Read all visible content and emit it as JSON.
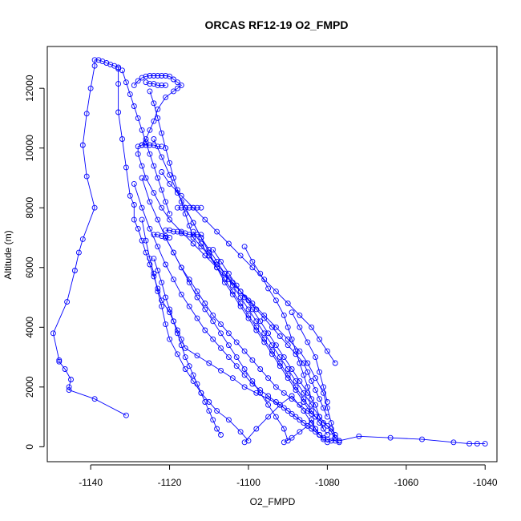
{
  "chart_data": {
    "type": "scatter",
    "title": "ORCAS RF12-19 O2_FMPD",
    "xlabel": "O2_FMPD",
    "ylabel": "Altitude (m)",
    "xlim": [
      -1151,
      -1037
    ],
    "ylim": [
      -500,
      13400
    ],
    "xticks": [
      -1140,
      -1120,
      -1100,
      -1080,
      -1060,
      -1040
    ],
    "yticks": [
      0,
      2000,
      4000,
      6000,
      8000,
      10000,
      12000
    ],
    "series_color": "#0000ff",
    "series": [
      {
        "x": [
          -1131,
          -1139,
          -1145.5,
          -1145.5,
          -1145,
          -1146.5,
          -1148,
          -1148,
          -1149.5,
          -1146,
          -1144,
          -1143,
          -1142,
          -1139,
          -1141,
          -1142,
          -1141,
          -1140,
          -1139,
          -1139,
          -1138,
          -1137,
          -1136,
          -1135,
          -1134,
          -1133,
          -1133
        ],
        "y": [
          1050,
          1600,
          1900,
          2000,
          2250,
          2600,
          2850,
          2900,
          3800,
          4850,
          5900,
          6500,
          6950,
          8000,
          9050,
          10100,
          11150,
          12000,
          12750,
          12950,
          12950,
          12900,
          12850,
          12800,
          12750,
          12700,
          12650
        ]
      },
      {
        "x": [
          -1133,
          -1133,
          -1133,
          -1132,
          -1131,
          -1130,
          -1129,
          -1129,
          -1128,
          -1127,
          -1126,
          -1125,
          -1124,
          -1123,
          -1122,
          -1120,
          -1119,
          -1118,
          -1117,
          -1116,
          -1113,
          -1110,
          -1107,
          -1104,
          -1101,
          -1098,
          -1095,
          -1092,
          -1090,
          -1088,
          -1086,
          -1084,
          -1082,
          -1080,
          -1078,
          -1077
        ],
        "y": [
          12700,
          12150,
          11200,
          10300,
          9350,
          8400,
          8100,
          7600,
          7300,
          6900,
          6500,
          6100,
          5700,
          5300,
          4900,
          4500,
          4200,
          3900,
          3600,
          3300,
          3050,
          2800,
          2550,
          2300,
          2000,
          1800,
          1600,
          1400,
          1200,
          1000,
          800,
          600,
          400,
          250,
          200,
          150
        ]
      },
      {
        "x": [
          -1129,
          -1128,
          -1127,
          -1126,
          -1125,
          -1124,
          -1123,
          -1122,
          -1121,
          -1120,
          -1119,
          -1118,
          -1117,
          -1118,
          -1119,
          -1121,
          -1123,
          -1124,
          -1125,
          -1126,
          -1127,
          -1128,
          -1128,
          -1127,
          -1126,
          -1124,
          -1122,
          -1120,
          -1117,
          -1114,
          -1111,
          -1108,
          -1105,
          -1102,
          -1099,
          -1096,
          -1093,
          -1090,
          -1087,
          -1085,
          -1083,
          -1081,
          -1080,
          -1079,
          -1078
        ],
        "y": [
          12100,
          12250,
          12350,
          12400,
          12420,
          12420,
          12420,
          12420,
          12420,
          12400,
          12300,
          12200,
          12100,
          12000,
          11900,
          11700,
          11300,
          10900,
          10600,
          10300,
          10100,
          10050,
          9800,
          9400,
          9000,
          8500,
          8000,
          7600,
          7200,
          6800,
          6400,
          6000,
          5600,
          5200,
          4800,
          4400,
          4000,
          3600,
          3200,
          2800,
          2300,
          1800,
          1300,
          800,
          300
        ]
      },
      {
        "x": [
          -1125,
          -1124,
          -1123,
          -1122,
          -1121,
          -1120,
          -1119,
          -1118,
          -1117,
          -1116,
          -1115,
          -1114,
          -1112,
          -1110,
          -1108,
          -1106,
          -1104,
          -1102,
          -1100,
          -1098,
          -1096,
          -1094,
          -1092,
          -1090,
          -1088,
          -1086,
          -1085,
          -1084,
          -1083,
          -1082,
          -1081,
          -1080
        ],
        "y": [
          11900,
          11500,
          11000,
          10500,
          10000,
          9500,
          9000,
          8600,
          8200,
          7800,
          7400,
          7000,
          6700,
          6400,
          6100,
          5800,
          5500,
          5200,
          4900,
          4600,
          4300,
          4000,
          3700,
          3400,
          3100,
          2800,
          2500,
          2200,
          1900,
          1600,
          1300,
          1000
        ]
      },
      {
        "x": [
          -1124,
          -1122,
          -1120,
          -1118,
          -1116,
          -1114,
          -1112,
          -1110,
          -1108,
          -1106,
          -1104,
          -1102,
          -1100,
          -1098,
          -1096,
          -1094,
          -1092,
          -1090,
          -1088,
          -1086,
          -1084,
          -1082,
          -1080,
          -1079,
          -1078,
          -1077
        ],
        "y": [
          10300,
          9700,
          9100,
          8500,
          8000,
          7500,
          7000,
          6600,
          6200,
          5800,
          5400,
          5000,
          4600,
          4200,
          3800,
          3400,
          3000,
          2600,
          2200,
          1800,
          1400,
          1000,
          700,
          500,
          300,
          200
        ]
      },
      {
        "x": [
          -1122,
          -1120,
          -1117,
          -1114,
          -1111,
          -1108,
          -1105,
          -1102,
          -1099,
          -1096,
          -1093,
          -1090,
          -1087,
          -1084,
          -1082,
          -1080,
          -1078
        ],
        "y": [
          9200,
          8800,
          8400,
          8000,
          7600,
          7200,
          6800,
          6400,
          6000,
          5600,
          5200,
          4800,
          4400,
          4000,
          3600,
          3200,
          2800
        ]
      },
      {
        "x": [
          -1127,
          -1125,
          -1123,
          -1121,
          -1119,
          -1117,
          -1115,
          -1113,
          -1111,
          -1109,
          -1107,
          -1105,
          -1103,
          -1101,
          -1099,
          -1097,
          -1095,
          -1093,
          -1091,
          -1089,
          -1087,
          -1085,
          -1083,
          -1081,
          -1079,
          -1078
        ],
        "y": [
          9000,
          8200,
          7600,
          7000,
          6500,
          6000,
          5600,
          5200,
          4800,
          4400,
          4100,
          3800,
          3500,
          3200,
          2900,
          2600,
          2300,
          2000,
          1800,
          1600,
          1400,
          1200,
          1000,
          800,
          600,
          400
        ]
      },
      {
        "x": [
          -1129,
          -1127,
          -1125,
          -1123,
          -1121,
          -1119,
          -1117,
          -1115,
          -1113,
          -1111,
          -1109,
          -1107,
          -1105,
          -1103,
          -1101,
          -1099,
          -1097,
          -1095,
          -1093,
          -1091,
          -1089,
          -1087,
          -1085,
          -1083,
          -1081
        ],
        "y": [
          8800,
          8000,
          7300,
          6700,
          6100,
          5600,
          5100,
          4700,
          4300,
          3900,
          3600,
          3300,
          3000,
          2700,
          2400,
          2100,
          1900,
          1700,
          1500,
          1300,
          1100,
          900,
          700,
          500,
          300
        ]
      },
      {
        "x": [
          -1127,
          -1126,
          -1125,
          -1124,
          -1123,
          -1122,
          -1121,
          -1120,
          -1118,
          -1116,
          -1114,
          -1112,
          -1110,
          -1108,
          -1105,
          -1102,
          -1100
        ],
        "y": [
          7600,
          6900,
          6300,
          5800,
          5200,
          4700,
          4100,
          3600,
          3100,
          2600,
          2200,
          1800,
          1500,
          1200,
          900,
          500,
          200
        ]
      },
      {
        "x": [
          -1124,
          -1123,
          -1122,
          -1121,
          -1120,
          -1119,
          -1118,
          -1117,
          -1116,
          -1115,
          -1114,
          -1113,
          -1112,
          -1111,
          -1110,
          -1109,
          -1108,
          -1107
        ],
        "y": [
          6300,
          5900,
          5500,
          5000,
          4600,
          4200,
          3800,
          3400,
          3000,
          2700,
          2400,
          2100,
          1800,
          1500,
          1200,
          900,
          600,
          400
        ]
      },
      {
        "x": [
          -1121,
          -1119,
          -1117,
          -1115,
          -1113,
          -1111,
          -1109,
          -1107,
          -1105,
          -1103,
          -1101,
          -1099,
          -1097,
          -1095,
          -1093,
          -1091,
          -1090
        ],
        "y": [
          7000,
          6500,
          6000,
          5500,
          5000,
          4600,
          4200,
          3800,
          3400,
          3000,
          2600,
          2200,
          1800,
          1400,
          1000,
          600,
          200
        ]
      },
      {
        "x": [
          -1114,
          -1112,
          -1110,
          -1108,
          -1106,
          -1104,
          -1102,
          -1100,
          -1098,
          -1096,
          -1094,
          -1092,
          -1090,
          -1088,
          -1086,
          -1084,
          -1082,
          -1080
        ],
        "y": [
          7200,
          6800,
          6400,
          6000,
          5600,
          5200,
          4800,
          4400,
          4000,
          3600,
          3200,
          2800,
          2400,
          2000,
          1600,
          1200,
          800,
          400
        ]
      },
      {
        "x": [
          -1116,
          -1114,
          -1112,
          -1110,
          -1108,
          -1106,
          -1104,
          -1102,
          -1100,
          -1098,
          -1096,
          -1094,
          -1092,
          -1090,
          -1088,
          -1086,
          -1084
        ],
        "y": [
          8000,
          7500,
          7000,
          6500,
          6000,
          5500,
          5100,
          4700,
          4300,
          3900,
          3500,
          3100,
          2700,
          2300,
          1900,
          1500,
          1100
        ]
      },
      {
        "x": [
          -1109,
          -1107,
          -1105,
          -1103,
          -1101,
          -1099,
          -1097,
          -1095,
          -1093,
          -1091,
          -1089,
          -1087,
          -1085,
          -1083,
          -1082,
          -1081
        ],
        "y": [
          6600,
          6200,
          5800,
          5400,
          5000,
          4600,
          4200,
          3800,
          3400,
          3000,
          2600,
          2200,
          1800,
          1400,
          1000,
          600
        ]
      },
      {
        "x": [
          -1101,
          -1099,
          -1097,
          -1095,
          -1093,
          -1091,
          -1090,
          -1089,
          -1088,
          -1087,
          -1086,
          -1085,
          -1084
        ],
        "y": [
          6700,
          6200,
          5800,
          5300,
          4900,
          4400,
          4000,
          3600,
          3200,
          2800,
          2400,
          2000,
          1600
        ]
      },
      {
        "x": [
          -1089,
          -1087,
          -1085,
          -1083,
          -1082,
          -1081,
          -1080
        ],
        "y": [
          4500,
          4000,
          3500,
          3000,
          2500,
          2000,
          1500
        ]
      },
      {
        "x": [
          -1077,
          -1072,
          -1064,
          -1056,
          -1048,
          -1044,
          -1042,
          -1040
        ],
        "y": [
          200,
          350,
          300,
          250,
          150,
          100,
          100,
          100
        ]
      },
      {
        "x": [
          -1132,
          -1131,
          -1130,
          -1129,
          -1128,
          -1127,
          -1126,
          -1125,
          -1124,
          -1123,
          -1122,
          -1121,
          -1120
        ],
        "y": [
          12600,
          12200,
          11800,
          11400,
          11000,
          10600,
          10200,
          9800,
          9400,
          9000,
          8600,
          8200,
          7800
        ]
      },
      {
        "x": [
          -1118,
          -1117,
          -1116,
          -1115,
          -1114,
          -1113,
          -1112
        ],
        "y": [
          8000,
          8000,
          8000,
          8000,
          8000,
          8000,
          8000
        ]
      },
      {
        "x": [
          -1121,
          -1120,
          -1119,
          -1118,
          -1117,
          -1116,
          -1115,
          -1114,
          -1113,
          -1112
        ],
        "y": [
          7250,
          7250,
          7200,
          7200,
          7150,
          7150,
          7100,
          7100,
          7100,
          7100
        ]
      },
      {
        "x": [
          -1124,
          -1123,
          -1122,
          -1121,
          -1120
        ],
        "y": [
          7100,
          7100,
          7050,
          7050,
          7000
        ]
      },
      {
        "x": [
          -1127,
          -1126,
          -1125,
          -1124,
          -1123,
          -1122
        ],
        "y": [
          10100,
          10100,
          10100,
          10100,
          10050,
          10050
        ]
      },
      {
        "x": [
          -1126,
          -1125,
          -1124,
          -1123,
          -1122,
          -1121
        ],
        "y": [
          12200,
          12150,
          12150,
          12100,
          12100,
          12100
        ]
      },
      {
        "x": [
          -1091,
          -1089,
          -1087,
          -1085,
          -1084,
          -1083,
          -1082,
          -1081,
          -1080,
          -1079,
          -1078
        ],
        "y": [
          150,
          300,
          500,
          700,
          900,
          600,
          400,
          250,
          150,
          200,
          300
        ]
      },
      {
        "x": [
          -1101,
          -1098,
          -1095,
          -1092,
          -1089,
          -1086,
          -1084,
          -1082
        ],
        "y": [
          150,
          600,
          1000,
          1400,
          1700,
          1200,
          800,
          400
        ]
      }
    ]
  }
}
